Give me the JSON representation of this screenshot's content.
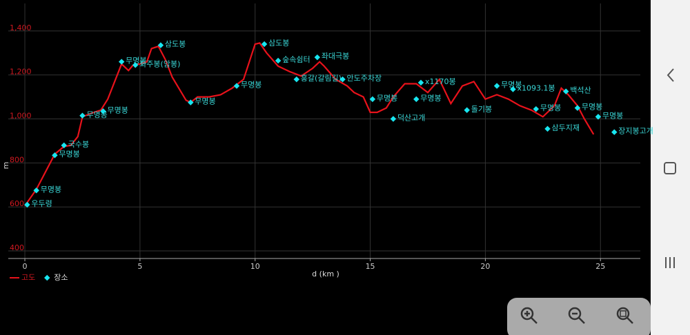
{
  "chart_data": {
    "type": "line",
    "xlabel": "d (km )",
    "ylabel": "m",
    "xlim": [
      -0.72,
      26.73
    ],
    "ylim": [
      365.6,
      1525
    ],
    "xticks": [
      0,
      5,
      10,
      15,
      20,
      25
    ],
    "yticks": [
      400,
      600,
      800,
      {
        "value": 1000,
        "label": "1,000"
      },
      {
        "value": 1200,
        "label": "1,200"
      },
      {
        "value": 1400,
        "label": "1,400"
      }
    ],
    "grid": true,
    "legend": "bottom-left",
    "series": [
      {
        "name": "고도",
        "type": "line",
        "color": "#e8121b",
        "x": [
          0,
          0.5,
          1,
          1.3,
          1.7,
          2.0,
          2.3,
          2.5,
          3.0,
          3.3,
          3.6,
          3.9,
          4.2,
          4.5,
          4.7,
          5.0,
          5.3,
          5.5,
          5.8,
          6.1,
          6.4,
          6.8,
          7.0,
          7.2,
          7.5,
          8.0,
          8.5,
          9.0,
          9.5,
          10.0,
          10.2,
          10.5,
          11.0,
          11.5,
          12.0,
          12.5,
          12.8,
          13.0,
          13.5,
          14.0,
          14.3,
          14.7,
          15.0,
          15.3,
          15.7,
          16.0,
          16.5,
          17.0,
          17.5,
          18.0,
          18.5,
          19.0,
          19.5,
          20.0,
          20.5,
          21.0,
          21.5,
          22.0,
          22.5,
          23.0,
          23.3,
          23.6,
          24.0,
          24.3,
          24.7
        ],
        "values": [
          605,
          680,
          780,
          840,
          875,
          880,
          920,
          1010,
          1030,
          1040,
          1090,
          1170,
          1250,
          1220,
          1245,
          1250,
          1260,
          1320,
          1330,
          1270,
          1190,
          1120,
          1085,
          1075,
          1100,
          1100,
          1110,
          1140,
          1180,
          1340,
          1345,
          1300,
          1240,
          1215,
          1195,
          1230,
          1260,
          1240,
          1180,
          1150,
          1120,
          1100,
          1030,
          1030,
          1050,
          1100,
          1160,
          1160,
          1120,
          1180,
          1070,
          1150,
          1170,
          1090,
          1110,
          1090,
          1060,
          1040,
          1010,
          1060,
          1140,
          1110,
          1060,
          1000,
          930
        ]
      },
      {
        "name": "장소",
        "type": "scatter",
        "color": "#18e6f0",
        "x": [
          0.1,
          0.5,
          1.3,
          1.7,
          2.5,
          3.4,
          4.2,
          4.8,
          5.9,
          7.2,
          9.2,
          10.4,
          11.0,
          11.8,
          12.7,
          13.8,
          15.1,
          16.0,
          17.0,
          17.2,
          19.2,
          20.5,
          21.2,
          22.2,
          22.7,
          23.5,
          24.0,
          24.9,
          25.6
        ],
        "values": [
          610,
          675,
          835,
          880,
          1015,
          1035,
          1260,
          1245,
          1335,
          1075,
          1150,
          1340,
          1265,
          1180,
          1280,
          1180,
          1090,
          1000,
          1090,
          1165,
          1040,
          1150,
          1135,
          1045,
          955,
          1125,
          1050,
          1010,
          940
        ],
        "labels": [
          "우두령",
          "무명봉",
          "무명봉",
          "국수봉",
          "무명봉",
          "무명봉",
          "무명봉",
          "화주봉(암봉)",
          "삼도봉",
          "무명봉",
          "무명봉",
          "삼도봉",
          "숲속쉼터",
          "홍갈(갈림길)",
          "좌대극봉",
          "안도주차장",
          "무명봉",
          "덕산고개",
          "무명봉",
          "x1170봉",
          "돌기봉",
          "무명봉",
          "x1093.1봉",
          "무명봉",
          "삼두지재",
          "백석산",
          "무명봉",
          "무명봉",
          "장지봉고개"
        ]
      }
    ]
  }
}
